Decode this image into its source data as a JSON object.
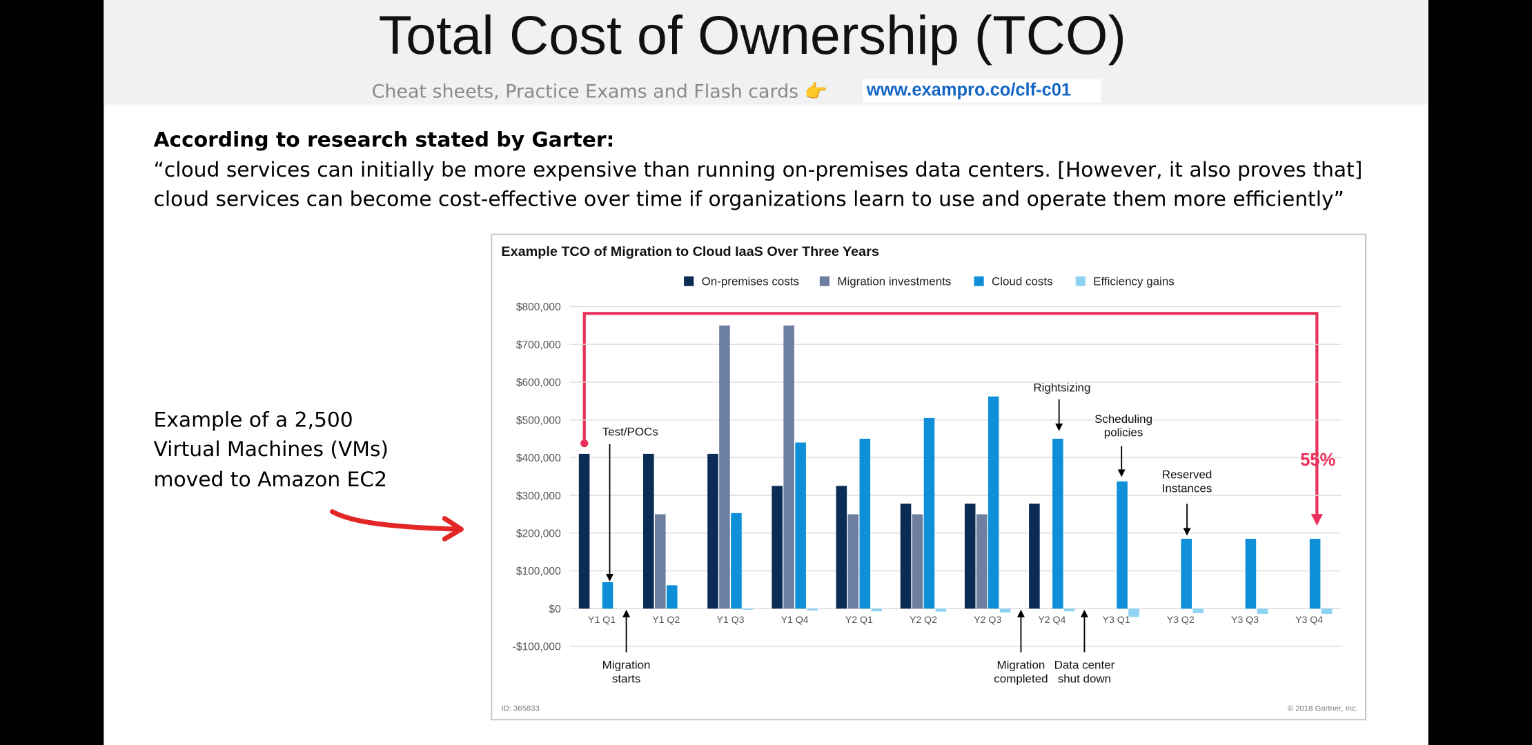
{
  "slide": {
    "title": "Total Cost of Ownership (TCO)",
    "subtitle": "Cheat sheets, Practice Exams and Flash cards 👉",
    "link": "www.exampro.co/clf-c01",
    "heading": "According to research stated by Garter:",
    "quote": [
      "“cloud services can initially be more expensive than running on-premises data centers. [However, it also proves that]",
      "cloud services can become cost-effective over time if organizations learn to use and operate them more efficiently”"
    ],
    "note": [
      "Example of a 2,500",
      "Virtual Machines (VMs)",
      "moved to Amazon EC2"
    ]
  },
  "chart_data": {
    "type": "bar",
    "title": "Example TCO of Migration to Cloud IaaS Over Three Years",
    "categories": [
      "Y1 Q1",
      "Y1 Q2",
      "Y1 Q3",
      "Y1 Q4",
      "Y2 Q1",
      "Y2 Q2",
      "Y2 Q3",
      "Y2 Q4",
      "Y3 Q1",
      "Y3 Q2",
      "Y3 Q3",
      "Y3 Q4"
    ],
    "series": [
      {
        "name": "On-premises costs",
        "color": "#0b2c55",
        "values": [
          410000,
          410000,
          410000,
          325000,
          325000,
          278000,
          278000,
          278000,
          null,
          null,
          null,
          null
        ]
      },
      {
        "name": "Migration investments",
        "color": "#6d7fa0",
        "values": [
          null,
          250000,
          750000,
          750000,
          250000,
          250000,
          250000,
          null,
          null,
          null,
          null,
          null
        ]
      },
      {
        "name": "Cloud costs",
        "color": "#0f8fd8",
        "values": [
          70000,
          62000,
          253000,
          440000,
          450000,
          505000,
          562000,
          450000,
          337000,
          185000,
          185000,
          185000
        ]
      },
      {
        "name": "Efficiency gains",
        "color": "#8fd3f2",
        "values": [
          null,
          null,
          -3000,
          -5000,
          -7000,
          -8000,
          -10000,
          -7000,
          -22000,
          -12000,
          -14000,
          -14000
        ]
      }
    ],
    "ylim": [
      -100000,
      800000
    ],
    "yticks": [
      {
        "value": -100000,
        "label": "-$100,000"
      },
      {
        "value": 0,
        "label": "$0"
      },
      {
        "value": 100000,
        "label": "$100,000"
      },
      {
        "value": 200000,
        "label": "$200,000"
      },
      {
        "value": 300000,
        "label": "$300,000"
      },
      {
        "value": 400000,
        "label": "$400,000"
      },
      {
        "value": 500000,
        "label": "$500,000"
      },
      {
        "value": 600000,
        "label": "$600,000"
      },
      {
        "value": 700000,
        "label": "$700,000"
      },
      {
        "value": 800000,
        "label": "$800,000"
      }
    ],
    "grid": true,
    "legend": "top",
    "annotations": [
      {
        "lines": [
          "Test/POCs"
        ]
      },
      {
        "lines": [
          "Migration",
          "starts"
        ]
      },
      {
        "lines": [
          "Rightsizing"
        ]
      },
      {
        "lines": [
          "Scheduling",
          "policies"
        ]
      },
      {
        "lines": [
          "Reserved",
          "Instances"
        ]
      },
      {
        "lines": [
          "Migration",
          "completed"
        ]
      },
      {
        "lines": [
          "Data center",
          "shut down"
        ]
      },
      {
        "lines": [
          "55%"
        ]
      }
    ],
    "footnote_left": "ID: 365833",
    "footnote_right": "© 2018 Gartner, Inc."
  }
}
